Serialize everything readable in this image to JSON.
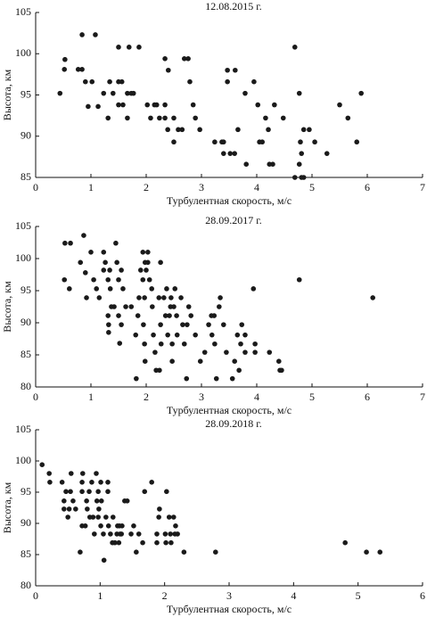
{
  "chart_data": [
    {
      "type": "scatter",
      "title": "12.08.2015 г.",
      "xlabel": "Турбулентная скорость, м/с",
      "ylabel": "Высота, км",
      "color": "#1a1a1a",
      "xlim": [
        0,
        7
      ],
      "ylim": [
        85,
        105
      ],
      "xticks": [
        0,
        1,
        2,
        3,
        4,
        5,
        6,
        7
      ],
      "yticks": [
        85,
        90,
        95,
        100,
        105
      ],
      "x": [
        0.44,
        0.52,
        0.53,
        0.84,
        1.08,
        0.77,
        0.84,
        0.9,
        1.02,
        0.95,
        1.13,
        1.23,
        1.31,
        1.34,
        1.4,
        1.5,
        1.56,
        1.5,
        1.69,
        1.87,
        1.66,
        1.73,
        1.77,
        1.58,
        1.66,
        1.5,
        2.02,
        2.08,
        2.15,
        2.19,
        2.24,
        2.34,
        2.34,
        2.39,
        2.34,
        2.4,
        2.5,
        2.5,
        2.58,
        2.65,
        2.69,
        2.76,
        2.79,
        2.85,
        2.89,
        2.97,
        3.24,
        3.37,
        3.4,
        3.4,
        3.52,
        3.6,
        3.66,
        3.47,
        3.47,
        3.61,
        3.81,
        3.79,
        3.95,
        4.02,
        4.05,
        4.1,
        4.16,
        4.21,
        4.23,
        4.29,
        4.32,
        4.48,
        4.69,
        4.69,
        4.77,
        4.81,
        4.79,
        4.77,
        4.81,
        4.85,
        4.85,
        4.95,
        5.05,
        5.27,
        5.5,
        5.65,
        5.89,
        5.81
      ],
      "values": [
        95.2,
        98.1,
        99.3,
        102.3,
        102.3,
        98.1,
        98.1,
        96.6,
        96.6,
        93.6,
        93.6,
        95.2,
        92.2,
        96.6,
        95.2,
        96.6,
        96.6,
        100.8,
        100.8,
        100.8,
        95.2,
        95.2,
        95.2,
        93.8,
        92.2,
        93.8,
        93.8,
        92.2,
        93.8,
        93.8,
        92.2,
        92.2,
        93.8,
        90.8,
        99.4,
        98,
        92.2,
        89.3,
        90.8,
        90.8,
        99.4,
        99.4,
        96.6,
        93.8,
        92.2,
        90.8,
        89.3,
        89.3,
        89.3,
        87.9,
        87.9,
        87.9,
        90.8,
        96.6,
        98,
        98,
        86.6,
        95.2,
        96.6,
        93.8,
        89.3,
        89.3,
        92.2,
        90.8,
        86.6,
        86.6,
        93.8,
        92.2,
        100.8,
        85,
        86.6,
        87.9,
        89.3,
        95.2,
        85,
        85,
        90.8,
        90.8,
        89.3,
        87.9,
        93.8,
        92.2,
        95.2,
        89.3
      ]
    },
    {
      "type": "scatter",
      "title": "28.09.2017 г.",
      "xlabel": "Турбулентная скорость, м/с",
      "ylabel": "Высота, км",
      "color": "#1a1a1a",
      "xlim": [
        0,
        7
      ],
      "ylim": [
        80,
        105
      ],
      "xticks": [
        0,
        1,
        2,
        3,
        4,
        5,
        6,
        7
      ],
      "yticks": [
        80,
        85,
        90,
        95,
        100,
        105
      ],
      "x": [
        0.53,
        0.63,
        0.87,
        0.52,
        0.61,
        0.81,
        0.9,
        0.92,
        1,
        1.05,
        1.1,
        1.15,
        1.23,
        1.23,
        1.26,
        1.31,
        1.34,
        1.35,
        1.31,
        1.32,
        1.32,
        1.37,
        1.42,
        1.45,
        1.47,
        1.5,
        1.5,
        1.52,
        1.55,
        1.55,
        1.58,
        1.63,
        1.73,
        1.81,
        1.82,
        1.85,
        1.87,
        1.9,
        1.94,
        1.94,
        1.95,
        1.97,
        1.97,
        1.98,
        1.98,
        2,
        2.03,
        2.03,
        2.06,
        2.1,
        2.11,
        2.13,
        2.16,
        2.18,
        2.23,
        2.24,
        2.26,
        2.26,
        2.27,
        2.32,
        2.35,
        2.37,
        2.39,
        2.42,
        2.44,
        2.45,
        2.47,
        2.47,
        2.5,
        2.52,
        2.55,
        2.56,
        2.63,
        2.66,
        2.69,
        2.73,
        2.74,
        2.77,
        2.81,
        2.89,
        2.98,
        3.06,
        3.13,
        3.18,
        3.23,
        3.19,
        3.24,
        3.27,
        3.32,
        3.34,
        3.4,
        3.45,
        3.56,
        3.6,
        3.65,
        3.68,
        3.71,
        3.73,
        3.79,
        3.79,
        3.94,
        3.97,
        3.97,
        4.23,
        4.4,
        4.42,
        4.45,
        4.77,
        6.1
      ],
      "values": [
        102.4,
        102.4,
        103.6,
        96.7,
        95.3,
        99.4,
        97.8,
        93.9,
        101,
        96.7,
        95.3,
        93.9,
        101,
        98.2,
        99.4,
        96.7,
        98.2,
        95.3,
        91.1,
        89.7,
        88.5,
        92.5,
        92.5,
        102.4,
        99.4,
        96.7,
        91.1,
        86.8,
        98.2,
        89.7,
        95.3,
        92.5,
        92.5,
        88.1,
        81.3,
        91.1,
        93.9,
        98.2,
        101,
        96.7,
        89.7,
        93.9,
        86.7,
        84,
        99.4,
        98.2,
        101,
        99.4,
        96.7,
        95.3,
        92.5,
        88.1,
        85.4,
        82.6,
        93.9,
        82.6,
        99.4,
        89.7,
        86.7,
        93.9,
        91.1,
        95.3,
        88.1,
        91.1,
        92.5,
        93.9,
        86.7,
        84,
        92.5,
        95.3,
        91.1,
        88.1,
        93.9,
        89.7,
        86.7,
        81.3,
        89.7,
        92.5,
        91.1,
        88.1,
        84,
        85.4,
        89.7,
        91.1,
        91.1,
        88.1,
        86.7,
        81.3,
        92.5,
        93.9,
        89.7,
        85.4,
        81.3,
        84,
        88.1,
        82.6,
        86.7,
        89.7,
        88.1,
        85.4,
        95.3,
        86.7,
        85.4,
        85.4,
        84,
        82.6,
        82.6,
        96.7,
        93.9
      ]
    },
    {
      "type": "scatter",
      "title": "28.09.2018 г.",
      "xlabel": "Турбулентная скорость, м/с",
      "ylabel": "Высота, км",
      "color": "#1a1a1a",
      "xlim": [
        0,
        6
      ],
      "ylim": [
        80,
        105
      ],
      "xticks": [
        0,
        1,
        2,
        3,
        4,
        5,
        6
      ],
      "yticks": [
        80,
        85,
        90,
        95,
        100,
        105
      ],
      "x": [
        0.1,
        0.21,
        0.22,
        0.41,
        0.44,
        0.44,
        0.47,
        0.5,
        0.52,
        0.54,
        0.55,
        0.58,
        0.62,
        0.69,
        0.72,
        0.72,
        0.73,
        0.72,
        0.77,
        0.79,
        0.8,
        0.83,
        0.84,
        0.87,
        0.89,
        0.91,
        0.94,
        0.95,
        0.97,
        0.97,
        0.98,
        1.01,
        1.01,
        1.02,
        1.05,
        1.06,
        1.09,
        1.12,
        1.12,
        1.13,
        1.16,
        1.19,
        1.2,
        1.23,
        1.26,
        1.27,
        1.29,
        1.3,
        1.31,
        1.33,
        1.34,
        1.38,
        1.42,
        1.48,
        1.52,
        1.56,
        1.6,
        1.66,
        1.69,
        1.8,
        1.88,
        1.88,
        1.91,
        1.92,
        2.01,
        2.02,
        2.03,
        2.07,
        2.09,
        2.1,
        2.14,
        2.16,
        2.17,
        2.2,
        2.3,
        2.79,
        4.8,
        5.13,
        5.34
      ],
      "values": [
        99.4,
        98,
        96.6,
        96.6,
        93.6,
        92.3,
        95.1,
        91,
        92.3,
        95.1,
        98,
        93.6,
        92.3,
        85.4,
        96.6,
        95.1,
        98,
        89.6,
        89.6,
        93.6,
        92.3,
        95.1,
        91,
        96.6,
        91,
        88.3,
        98,
        93.6,
        95.1,
        91,
        92.3,
        96.6,
        89.6,
        93.6,
        88.3,
        84.1,
        91,
        96.6,
        95.1,
        89.6,
        88.3,
        86.9,
        91,
        86.9,
        88.3,
        89.6,
        86.9,
        89.6,
        88.3,
        88.3,
        89.6,
        93.6,
        93.6,
        88.3,
        89.6,
        85.4,
        88.3,
        86.9,
        95.1,
        96.6,
        88.3,
        86.9,
        91,
        92.3,
        88.3,
        86.9,
        95.1,
        91,
        88.3,
        86.9,
        91,
        88.3,
        89.6,
        88.3,
        85.4,
        85.4,
        86.9,
        85.4,
        85.4
      ]
    }
  ]
}
